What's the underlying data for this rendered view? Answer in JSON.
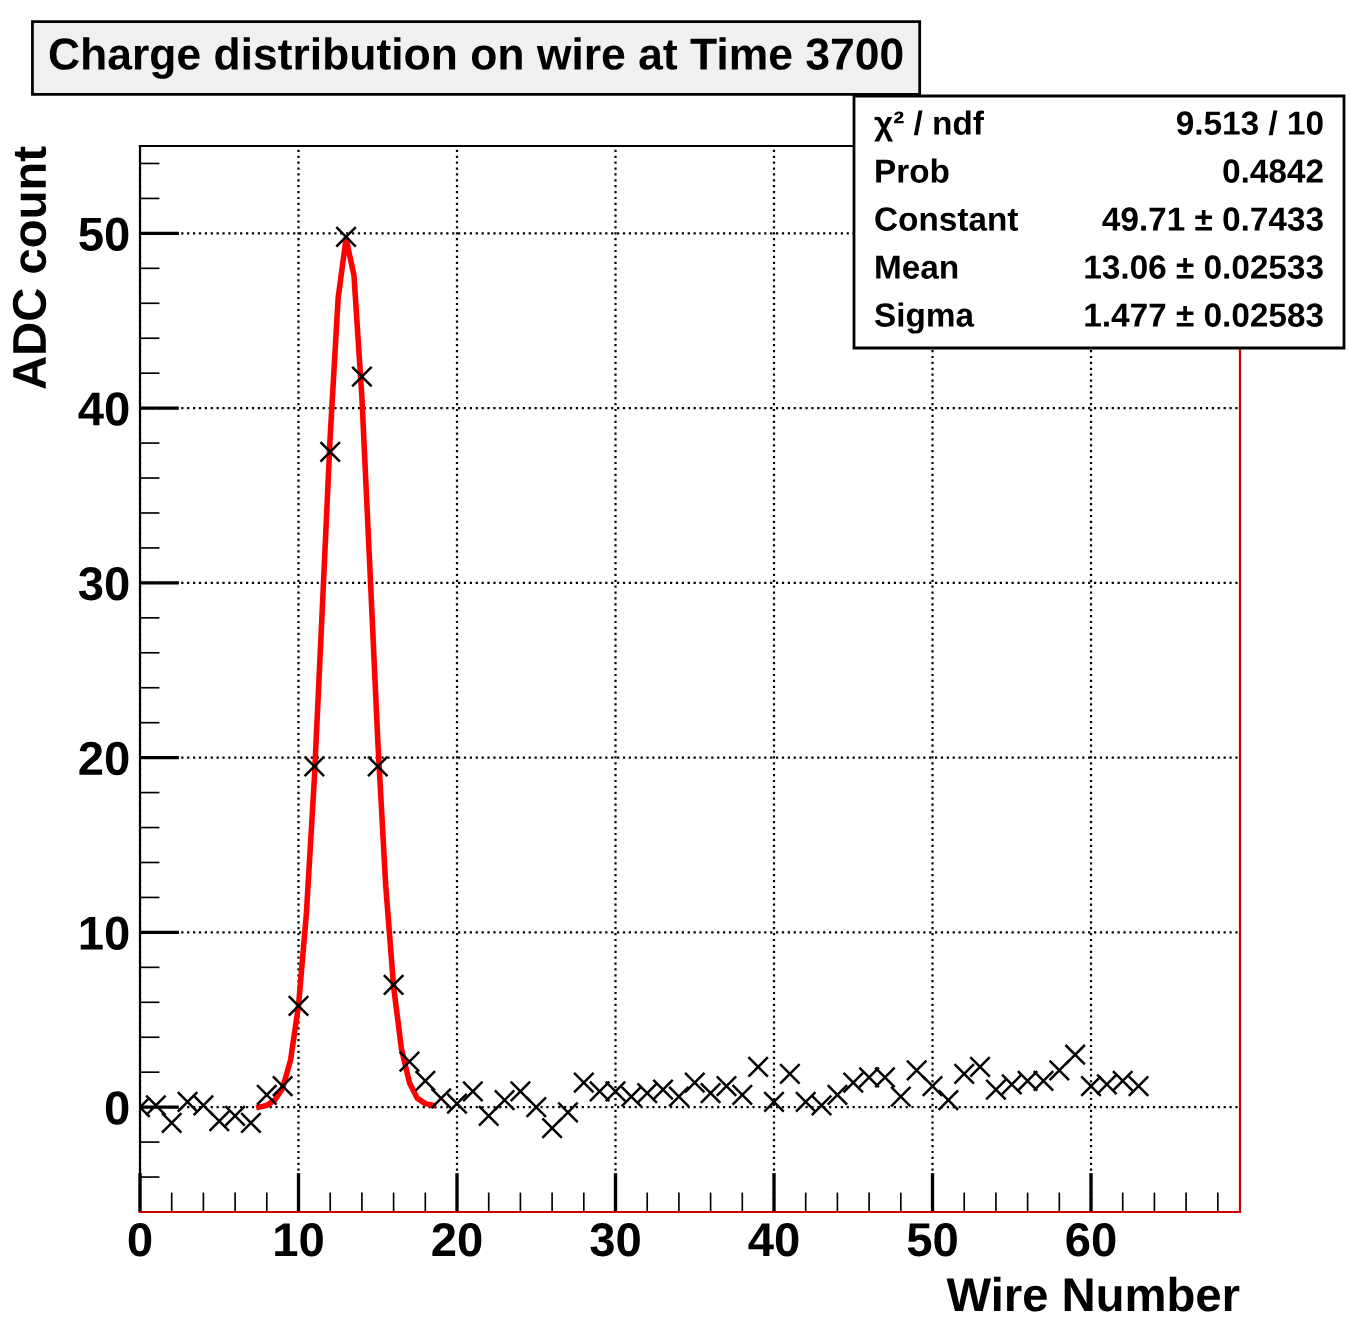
{
  "chart_data": {
    "type": "scatter",
    "title": "Charge distribution on wire at Time 3700",
    "xlabel": "Wire Number",
    "ylabel": "ADC count",
    "x": [
      0,
      1,
      2,
      3,
      4,
      5,
      6,
      7,
      8,
      9,
      10,
      11,
      12,
      13,
      14,
      15,
      16,
      17,
      18,
      19,
      20,
      21,
      22,
      23,
      24,
      25,
      26,
      27,
      28,
      29,
      30,
      31,
      32,
      33,
      34,
      35,
      36,
      37,
      38,
      39,
      40,
      41,
      42,
      43,
      44,
      45,
      46,
      47,
      48,
      49,
      50,
      51,
      52,
      53,
      54,
      55,
      56,
      57,
      58,
      59,
      60,
      61,
      62,
      63
    ],
    "series": [
      {
        "color": "#000000",
        "marker": "cross",
        "values": [
          0,
          0.1,
          -0.9,
          0.3,
          0.1,
          -0.8,
          -0.5,
          -0.9,
          0.7,
          1.2,
          5.8,
          19.5,
          37.5,
          49.8,
          41.8,
          19.5,
          7.0,
          2.6,
          1.5,
          0.5,
          0.2,
          0.9,
          -0.5,
          0.4,
          0.9,
          0,
          -1.2,
          -0.3,
          1.4,
          0.9,
          0.9,
          0.6,
          0.8,
          1.0,
          0.6,
          1.4,
          0.8,
          1.2,
          0.7,
          2.3,
          0.3,
          1.9,
          0.3,
          0.1,
          0.7,
          1.4,
          1.7,
          1.7,
          0.6,
          2.1,
          1.2,
          0.4,
          1.9,
          2.3,
          1.0,
          1.3,
          1.5,
          1.5,
          2.1,
          3.0,
          1.2,
          1.3,
          1.5,
          1.2
        ]
      },
      {
        "type": "line",
        "color": "#ff0000",
        "marker": "none",
        "x": [
          7.5,
          8,
          8.5,
          9,
          9.5,
          10,
          10.5,
          11,
          11.5,
          12,
          12.5,
          13,
          13.5,
          14,
          14.5,
          15,
          15.5,
          16,
          16.5,
          17,
          17.5,
          18,
          18.5
        ],
        "values": [
          0,
          0.1,
          0.4,
          1.1,
          2.7,
          5.8,
          11.1,
          18.8,
          28.5,
          38.4,
          46.3,
          49.7,
          47.6,
          40.6,
          30.9,
          21.0,
          12.7,
          6.9,
          3.3,
          1.4,
          0.5,
          0.2,
          0.1
        ]
      }
    ],
    "xlim": [
      0,
      69.4
    ],
    "ylim": [
      -6,
      55
    ],
    "xticks": [
      0,
      10,
      20,
      30,
      40,
      50,
      60
    ],
    "yticks": [
      0,
      10,
      20,
      30,
      40,
      50
    ],
    "grid": true,
    "annotations": [
      "χ² / ndf",
      "9.513 / 10",
      "Prob",
      "0.4842",
      "Constant",
      "49.71 ± 0.7433",
      "Mean",
      "13.06 ± 0.02533",
      "Sigma",
      "1.477 ± 0.02583"
    ]
  }
}
